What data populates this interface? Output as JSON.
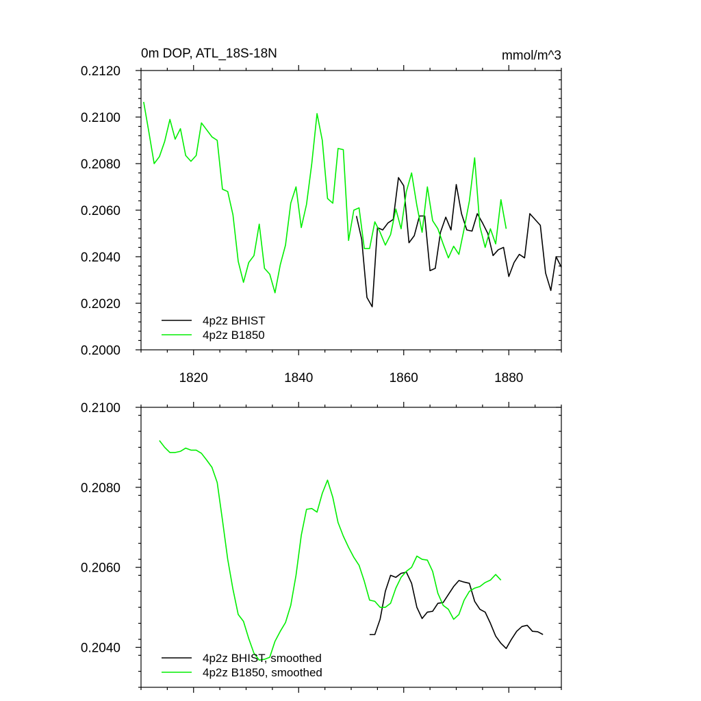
{
  "colors": {
    "bhist": "#000000",
    "b1850": "#00ee00"
  },
  "chart_data": [
    {
      "type": "line",
      "title": "0m DOP, ATL_18S-18N",
      "units": "mmol/m^3",
      "xlim": [
        1810,
        1890
      ],
      "ylim": [
        0.2,
        0.212
      ],
      "x_ticks": [
        1820,
        1840,
        1860,
        1880
      ],
      "x_tick_labels": [
        "1820",
        "1840",
        "1860",
        "1880"
      ],
      "y_ticks": [
        0.2,
        0.202,
        0.204,
        0.206,
        0.208,
        0.21,
        0.212
      ],
      "y_tick_labels": [
        "0.2000",
        "0.2020",
        "0.2040",
        "0.2060",
        "0.2080",
        "0.2100",
        "0.2120"
      ],
      "legend": [
        "4p2z BHIST",
        "4p2z B1850"
      ],
      "legend_position": "bottom-left",
      "series": [
        {
          "name": "4p2z BHIST",
          "color": "#000000",
          "x_start": 1851,
          "values": [
            0.20575,
            0.20475,
            0.20225,
            0.20185,
            0.20525,
            0.20515,
            0.20545,
            0.2056,
            0.2074,
            0.20705,
            0.2046,
            0.2049,
            0.20575,
            0.20575,
            0.2034,
            0.2035,
            0.20505,
            0.2057,
            0.20515,
            0.2071,
            0.20585,
            0.20515,
            0.2051,
            0.20585,
            0.20545,
            0.205,
            0.20405,
            0.2043,
            0.2044,
            0.20315,
            0.20375,
            0.2041,
            0.20395,
            0.20585,
            0.2056,
            0.20535,
            0.2033,
            0.20255,
            0.204,
            0.20355
          ]
        },
        {
          "name": "4p2z B1850",
          "color": "#00ee00",
          "x_start": 1810.5,
          "values": [
            0.21065,
            0.20935,
            0.208,
            0.2083,
            0.20895,
            0.2099,
            0.20905,
            0.2095,
            0.20835,
            0.2081,
            0.20835,
            0.20975,
            0.20945,
            0.20915,
            0.209,
            0.2069,
            0.2068,
            0.2058,
            0.2038,
            0.2029,
            0.20375,
            0.20405,
            0.2054,
            0.2035,
            0.20325,
            0.20245,
            0.20365,
            0.2045,
            0.2063,
            0.207,
            0.20525,
            0.20625,
            0.208,
            0.21015,
            0.209,
            0.2065,
            0.2063,
            0.20865,
            0.2086,
            0.2047,
            0.206,
            0.2061,
            0.20435,
            0.20435,
            0.2055,
            0.20505,
            0.2045,
            0.20495,
            0.20605,
            0.2052,
            0.2068,
            0.2076,
            0.2062,
            0.20505,
            0.207,
            0.20555,
            0.2052,
            0.20455,
            0.20395,
            0.20445,
            0.2041,
            0.2052,
            0.2064,
            0.20825,
            0.2053,
            0.2044,
            0.2052,
            0.20455,
            0.20645,
            0.2052
          ]
        }
      ]
    },
    {
      "type": "line",
      "xlim": [
        1810,
        1890
      ],
      "ylim": [
        0.203,
        0.21
      ],
      "x_ticks": [
        1820,
        1840,
        1860,
        1880
      ],
      "y_ticks": [
        0.204,
        0.206,
        0.208,
        0.21
      ],
      "y_tick_labels": [
        "0.2040",
        "0.2060",
        "0.2080",
        "0.2100"
      ],
      "legend": [
        "4p2z BHIST, smoothed",
        "4p2z B1850, smoothed"
      ],
      "legend_position": "bottom-left",
      "series": [
        {
          "name": "4p2z BHIST, smoothed",
          "color": "#000000",
          "x_start": 1853.5,
          "values": [
            0.20432,
            0.20432,
            0.2047,
            0.2054,
            0.2058,
            0.20575,
            0.20585,
            0.20588,
            0.2056,
            0.205,
            0.20472,
            0.20488,
            0.2049,
            0.2051,
            0.20512,
            0.20532,
            0.20552,
            0.20567,
            0.20563,
            0.2056,
            0.20515,
            0.20495,
            0.20488,
            0.2046,
            0.20428,
            0.2041,
            0.20397,
            0.2042,
            0.2044,
            0.20452,
            0.20455,
            0.2044,
            0.20439,
            0.20432
          ]
        },
        {
          "name": "4p2z B1850, smoothed",
          "color": "#00ee00",
          "x_start": 1813.5,
          "values": [
            0.20917,
            0.209,
            0.20887,
            0.20887,
            0.2089,
            0.20898,
            0.20893,
            0.20893,
            0.20885,
            0.20868,
            0.2085,
            0.20812,
            0.20718,
            0.2062,
            0.20545,
            0.20482,
            0.20465,
            0.20422,
            0.20385,
            0.20368,
            0.2037,
            0.20375,
            0.20415,
            0.2044,
            0.20462,
            0.20505,
            0.2058,
            0.2068,
            0.20745,
            0.20747,
            0.20738,
            0.20785,
            0.20818,
            0.20775,
            0.20712,
            0.20678,
            0.2065,
            0.20625,
            0.20605,
            0.20565,
            0.20518,
            0.20515,
            0.205,
            0.205,
            0.2051,
            0.20548,
            0.20575,
            0.2059,
            0.206,
            0.20628,
            0.2062,
            0.20618,
            0.2059,
            0.20535,
            0.20505,
            0.20495,
            0.2047,
            0.20482,
            0.20518,
            0.2054,
            0.20548,
            0.20552,
            0.20562,
            0.20568,
            0.20582,
            0.20568
          ]
        }
      ]
    }
  ]
}
